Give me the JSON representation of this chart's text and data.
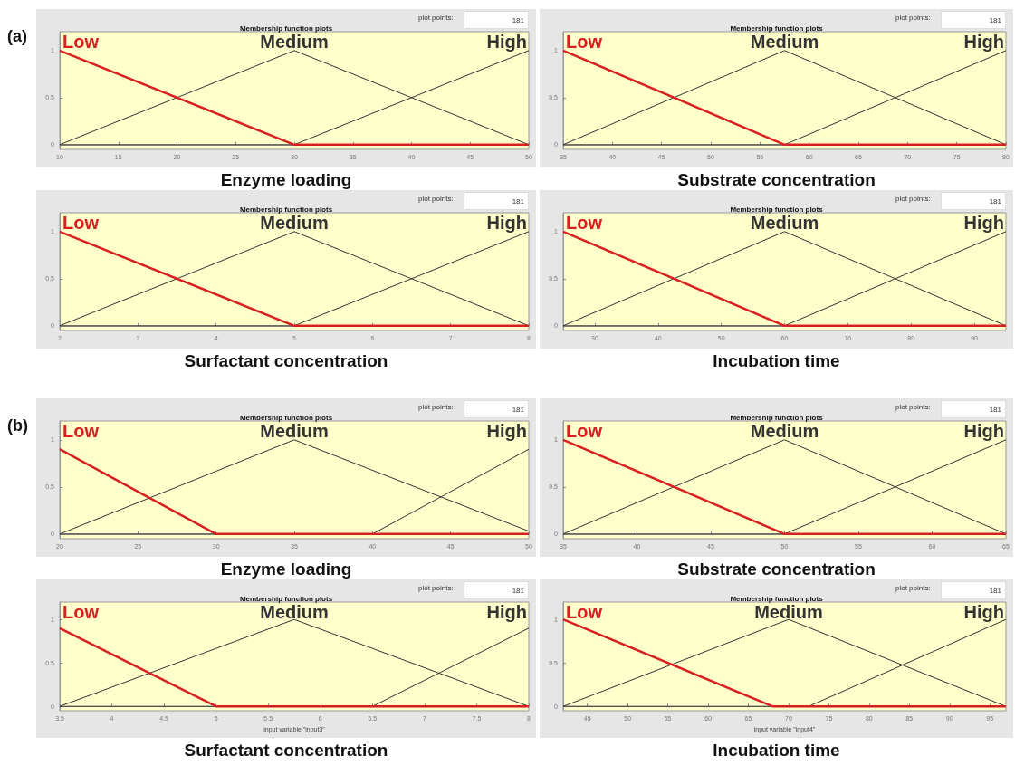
{
  "chart_data": [
    {
      "type": "line",
      "title": "Membership function plots",
      "annotations": [
        "plot points:",
        "181",
        "Enzyme loading",
        "(a)"
      ],
      "xlim": [
        10,
        50
      ],
      "xticks": [
        10,
        15,
        20,
        25,
        30,
        35,
        40,
        45,
        50
      ],
      "ylim": [
        -0.05,
        1.2
      ],
      "yticks": [
        0,
        0.5,
        1
      ],
      "series": [
        {
          "name": "Low",
          "color": "#d92020",
          "x": [
            10,
            30,
            50
          ],
          "values": [
            1,
            0,
            0
          ]
        },
        {
          "name": "Medium",
          "color": "#333333",
          "x": [
            10,
            30,
            50
          ],
          "values": [
            0,
            1,
            0
          ]
        },
        {
          "name": "High",
          "color": "#333333",
          "x": [
            10,
            30,
            50
          ],
          "values": [
            0,
            0,
            1
          ]
        }
      ]
    },
    {
      "type": "line",
      "title": "Membership function plots",
      "annotations": [
        "plot points:",
        "181",
        "Substrate concentration"
      ],
      "xlim": [
        35,
        80
      ],
      "xticks": [
        35,
        40,
        45,
        50,
        55,
        60,
        65,
        70,
        75,
        80
      ],
      "ylim": [
        -0.05,
        1.2
      ],
      "yticks": [
        0,
        0.5,
        1
      ],
      "series": [
        {
          "name": "Low",
          "color": "#d92020",
          "x": [
            35,
            57.5,
            80
          ],
          "values": [
            1,
            0,
            0
          ]
        },
        {
          "name": "Medium",
          "color": "#333333",
          "x": [
            35,
            57.5,
            80
          ],
          "values": [
            0,
            1,
            0
          ]
        },
        {
          "name": "High",
          "color": "#333333",
          "x": [
            35,
            57.5,
            80
          ],
          "values": [
            0,
            0,
            1
          ]
        }
      ]
    },
    {
      "type": "line",
      "title": "Membership function plots",
      "annotations": [
        "plot points:",
        "181",
        "Surfactant concentration"
      ],
      "xlim": [
        2,
        8
      ],
      "xticks": [
        2,
        3,
        4,
        5,
        6,
        7,
        8
      ],
      "ylim": [
        -0.05,
        1.2
      ],
      "yticks": [
        0,
        0.5,
        1
      ],
      "series": [
        {
          "name": "Low",
          "color": "#d92020",
          "x": [
            2,
            5,
            8
          ],
          "values": [
            1,
            0,
            0
          ]
        },
        {
          "name": "Medium",
          "color": "#333333",
          "x": [
            2,
            5,
            8
          ],
          "values": [
            0,
            1,
            0
          ]
        },
        {
          "name": "High",
          "color": "#333333",
          "x": [
            2,
            5,
            8
          ],
          "values": [
            0,
            0,
            1
          ]
        }
      ]
    },
    {
      "type": "line",
      "title": "Membership function plots",
      "annotations": [
        "plot points:",
        "181",
        "Incubation time"
      ],
      "xlim": [
        25,
        95
      ],
      "xticks": [
        30,
        40,
        50,
        60,
        70,
        80,
        90
      ],
      "ylim": [
        -0.05,
        1.2
      ],
      "yticks": [
        0,
        0.5,
        1
      ],
      "series": [
        {
          "name": "Low",
          "color": "#d92020",
          "x": [
            25,
            60,
            95
          ],
          "values": [
            1,
            0,
            0
          ]
        },
        {
          "name": "Medium",
          "color": "#333333",
          "x": [
            25,
            60,
            95
          ],
          "values": [
            0,
            1,
            0
          ]
        },
        {
          "name": "High",
          "color": "#333333",
          "x": [
            25,
            60,
            95
          ],
          "values": [
            0,
            0,
            1
          ]
        }
      ]
    },
    {
      "type": "line",
      "title": "Membership function plots",
      "annotations": [
        "plot points:",
        "181",
        "Enzyme loading",
        "(b)"
      ],
      "xlim": [
        20,
        50
      ],
      "xticks": [
        20,
        25,
        30,
        35,
        40,
        45,
        50
      ],
      "ylim": [
        -0.05,
        1.2
      ],
      "yticks": [
        0,
        0.5,
        1
      ],
      "series": [
        {
          "name": "Low",
          "color": "#d92020",
          "x": [
            20,
            30,
            50
          ],
          "values": [
            0.9,
            0,
            0
          ]
        },
        {
          "name": "Medium",
          "color": "#333333",
          "x": [
            20,
            35,
            50
          ],
          "values": [
            0,
            1,
            0.03
          ]
        },
        {
          "name": "High",
          "color": "#333333",
          "x": [
            20,
            40,
            50
          ],
          "values": [
            0,
            0,
            0.9
          ]
        }
      ]
    },
    {
      "type": "line",
      "title": "Membership function plots",
      "annotations": [
        "plot points:",
        "181",
        "Substrate concentration"
      ],
      "xlim": [
        35,
        65
      ],
      "xticks": [
        35,
        40,
        45,
        50,
        55,
        60,
        65
      ],
      "ylim": [
        -0.05,
        1.2
      ],
      "yticks": [
        0,
        0.5,
        1
      ],
      "series": [
        {
          "name": "Low",
          "color": "#d92020",
          "x": [
            35,
            50,
            65
          ],
          "values": [
            1,
            0,
            0
          ]
        },
        {
          "name": "Medium",
          "color": "#333333",
          "x": [
            35,
            50,
            65
          ],
          "values": [
            0,
            1,
            0
          ]
        },
        {
          "name": "High",
          "color": "#333333",
          "x": [
            35,
            50,
            65
          ],
          "values": [
            0,
            0,
            1
          ]
        }
      ]
    },
    {
      "type": "line",
      "title": "Membership function plots",
      "xlabel": "input variable \"input3\"",
      "annotations": [
        "plot points:",
        "181",
        "Surfactant concentration"
      ],
      "xlim": [
        3.5,
        8
      ],
      "xticks": [
        3.5,
        4,
        4.5,
        5,
        5.5,
        6,
        6.5,
        7,
        7.5,
        8
      ],
      "ylim": [
        -0.05,
        1.2
      ],
      "yticks": [
        0,
        0.5,
        1
      ],
      "series": [
        {
          "name": "Low",
          "color": "#d92020",
          "x": [
            3.5,
            5,
            8
          ],
          "values": [
            0.9,
            0,
            0
          ]
        },
        {
          "name": "Medium",
          "color": "#333333",
          "x": [
            3.5,
            5.75,
            8
          ],
          "values": [
            0,
            1,
            0
          ]
        },
        {
          "name": "High",
          "color": "#333333",
          "x": [
            3.5,
            6.5,
            8
          ],
          "values": [
            0,
            0,
            0.9
          ]
        }
      ]
    },
    {
      "type": "line",
      "title": "Membership function plots",
      "xlabel": "input variable \"input4\"",
      "annotations": [
        "plot points:",
        "181",
        "Incubation time"
      ],
      "xlim": [
        42,
        97
      ],
      "xticks": [
        45,
        50,
        55,
        60,
        65,
        70,
        75,
        80,
        85,
        90,
        95
      ],
      "ylim": [
        -0.05,
        1.2
      ],
      "yticks": [
        0,
        0.5,
        1
      ],
      "series": [
        {
          "name": "Low",
          "color": "#d92020",
          "x": [
            42,
            68,
            97
          ],
          "values": [
            1,
            0,
            0
          ]
        },
        {
          "name": "Medium",
          "color": "#333333",
          "x": [
            42,
            70,
            97
          ],
          "values": [
            0,
            1,
            0
          ]
        },
        {
          "name": "High",
          "color": "#333333",
          "x": [
            42,
            72.5,
            97
          ],
          "values": [
            0,
            0,
            1
          ]
        }
      ]
    }
  ]
}
